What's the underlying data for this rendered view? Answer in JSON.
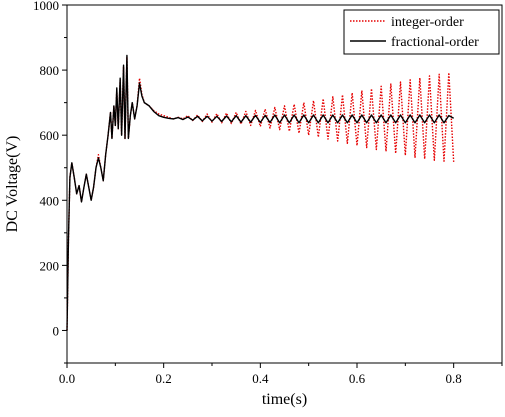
{
  "chart_data": {
    "type": "line",
    "title": "",
    "xlabel": "time(s)",
    "ylabel": "DC Voltage(V)",
    "xlim": [
      0.0,
      0.9
    ],
    "ylim": [
      -100,
      1000
    ],
    "x_ticks": [
      0.0,
      0.2,
      0.4,
      0.6,
      0.8
    ],
    "x_tick_labels": [
      "0.0",
      "0.2",
      "0.4",
      "0.6",
      "0.8"
    ],
    "y_ticks": [
      0,
      200,
      400,
      600,
      800,
      1000
    ],
    "y_tick_labels": [
      "0",
      "200",
      "400",
      "600",
      "800",
      "1000"
    ],
    "grid": false,
    "legend_position": "top-right",
    "series": [
      {
        "name": "integer-order",
        "color": "#e60000",
        "line_style": "dotted",
        "points": [
          [
            0.0,
            0
          ],
          [
            0.003,
            280
          ],
          [
            0.006,
            470
          ],
          [
            0.01,
            515
          ],
          [
            0.015,
            470
          ],
          [
            0.02,
            420
          ],
          [
            0.025,
            445
          ],
          [
            0.03,
            395
          ],
          [
            0.035,
            440
          ],
          [
            0.04,
            480
          ],
          [
            0.045,
            440
          ],
          [
            0.05,
            400
          ],
          [
            0.055,
            440
          ],
          [
            0.06,
            500
          ],
          [
            0.065,
            540
          ],
          [
            0.07,
            500
          ],
          [
            0.075,
            460
          ],
          [
            0.08,
            540
          ],
          [
            0.085,
            600
          ],
          [
            0.09,
            670
          ],
          [
            0.093,
            590
          ],
          [
            0.097,
            690
          ],
          [
            0.1,
            630
          ],
          [
            0.103,
            740
          ],
          [
            0.106,
            620
          ],
          [
            0.11,
            770
          ],
          [
            0.113,
            600
          ],
          [
            0.117,
            810
          ],
          [
            0.12,
            590
          ],
          [
            0.124,
            840
          ],
          [
            0.127,
            590
          ],
          [
            0.131,
            660
          ],
          [
            0.135,
            700
          ],
          [
            0.14,
            650
          ],
          [
            0.145,
            690
          ],
          [
            0.15,
            775
          ],
          [
            0.155,
            725
          ],
          [
            0.16,
            700
          ],
          [
            0.17,
            690
          ],
          [
            0.18,
            675
          ],
          [
            0.19,
            665
          ],
          [
            0.2,
            660
          ],
          [
            0.21,
            655
          ],
          [
            0.22,
            650
          ],
          [
            0.23,
            655
          ],
          [
            0.24,
            650
          ],
          [
            0.25,
            660
          ],
          [
            0.26,
            645
          ],
          [
            0.27,
            662
          ],
          [
            0.28,
            642
          ],
          [
            0.29,
            665
          ],
          [
            0.3,
            640
          ],
          [
            0.31,
            666
          ],
          [
            0.32,
            638
          ],
          [
            0.33,
            668
          ],
          [
            0.34,
            636
          ],
          [
            0.35,
            670
          ],
          [
            0.36,
            634
          ],
          [
            0.37,
            673
          ],
          [
            0.38,
            630
          ],
          [
            0.39,
            676
          ],
          [
            0.4,
            627
          ],
          [
            0.41,
            680
          ],
          [
            0.42,
            622
          ],
          [
            0.43,
            685
          ],
          [
            0.44,
            617
          ],
          [
            0.45,
            690
          ],
          [
            0.46,
            612
          ],
          [
            0.47,
            695
          ],
          [
            0.48,
            606
          ],
          [
            0.49,
            700
          ],
          [
            0.5,
            600
          ],
          [
            0.51,
            706
          ],
          [
            0.52,
            594
          ],
          [
            0.53,
            712
          ],
          [
            0.54,
            588
          ],
          [
            0.55,
            718
          ],
          [
            0.56,
            582
          ],
          [
            0.57,
            724
          ],
          [
            0.58,
            575
          ],
          [
            0.59,
            730
          ],
          [
            0.6,
            568
          ],
          [
            0.61,
            737
          ],
          [
            0.62,
            562
          ],
          [
            0.63,
            743
          ],
          [
            0.64,
            556
          ],
          [
            0.65,
            750
          ],
          [
            0.66,
            550
          ],
          [
            0.67,
            757
          ],
          [
            0.68,
            544
          ],
          [
            0.69,
            763
          ],
          [
            0.7,
            538
          ],
          [
            0.71,
            770
          ],
          [
            0.72,
            532
          ],
          [
            0.73,
            776
          ],
          [
            0.74,
            527
          ],
          [
            0.75,
            782
          ],
          [
            0.76,
            523
          ],
          [
            0.77,
            787
          ],
          [
            0.78,
            520
          ],
          [
            0.79,
            792
          ],
          [
            0.8,
            518
          ]
        ]
      },
      {
        "name": "fractional-order",
        "color": "#000000",
        "line_style": "solid",
        "points": [
          [
            0.0,
            0
          ],
          [
            0.003,
            280
          ],
          [
            0.006,
            470
          ],
          [
            0.01,
            515
          ],
          [
            0.015,
            470
          ],
          [
            0.02,
            420
          ],
          [
            0.025,
            445
          ],
          [
            0.03,
            395
          ],
          [
            0.035,
            440
          ],
          [
            0.04,
            480
          ],
          [
            0.045,
            440
          ],
          [
            0.05,
            400
          ],
          [
            0.055,
            440
          ],
          [
            0.06,
            500
          ],
          [
            0.065,
            530
          ],
          [
            0.07,
            500
          ],
          [
            0.075,
            460
          ],
          [
            0.08,
            540
          ],
          [
            0.085,
            600
          ],
          [
            0.09,
            670
          ],
          [
            0.093,
            590
          ],
          [
            0.097,
            690
          ],
          [
            0.1,
            630
          ],
          [
            0.103,
            745
          ],
          [
            0.106,
            620
          ],
          [
            0.11,
            775
          ],
          [
            0.113,
            600
          ],
          [
            0.117,
            815
          ],
          [
            0.12,
            590
          ],
          [
            0.124,
            845
          ],
          [
            0.127,
            590
          ],
          [
            0.131,
            660
          ],
          [
            0.135,
            700
          ],
          [
            0.14,
            650
          ],
          [
            0.145,
            690
          ],
          [
            0.15,
            760
          ],
          [
            0.155,
            720
          ],
          [
            0.16,
            700
          ],
          [
            0.17,
            690
          ],
          [
            0.18,
            672
          ],
          [
            0.19,
            660
          ],
          [
            0.2,
            655
          ],
          [
            0.21,
            652
          ],
          [
            0.22,
            650
          ],
          [
            0.23,
            654
          ],
          [
            0.24,
            648
          ],
          [
            0.25,
            656
          ],
          [
            0.26,
            646
          ],
          [
            0.27,
            658
          ],
          [
            0.28,
            644
          ],
          [
            0.29,
            658
          ],
          [
            0.3,
            643
          ],
          [
            0.31,
            658
          ],
          [
            0.32,
            642
          ],
          [
            0.33,
            659
          ],
          [
            0.34,
            641
          ],
          [
            0.35,
            660
          ],
          [
            0.36,
            640
          ],
          [
            0.37,
            660
          ],
          [
            0.38,
            640
          ],
          [
            0.39,
            661
          ],
          [
            0.4,
            639
          ],
          [
            0.41,
            661
          ],
          [
            0.42,
            639
          ],
          [
            0.43,
            662
          ],
          [
            0.44,
            638
          ],
          [
            0.45,
            662
          ],
          [
            0.46,
            638
          ],
          [
            0.47,
            662
          ],
          [
            0.48,
            638
          ],
          [
            0.49,
            662
          ],
          [
            0.5,
            638
          ],
          [
            0.51,
            662
          ],
          [
            0.52,
            638
          ],
          [
            0.53,
            662
          ],
          [
            0.54,
            638
          ],
          [
            0.55,
            662
          ],
          [
            0.56,
            638
          ],
          [
            0.57,
            662
          ],
          [
            0.58,
            638
          ],
          [
            0.59,
            662
          ],
          [
            0.6,
            638
          ],
          [
            0.61,
            662
          ],
          [
            0.62,
            638
          ],
          [
            0.63,
            662
          ],
          [
            0.64,
            638
          ],
          [
            0.65,
            662
          ],
          [
            0.66,
            638
          ],
          [
            0.67,
            662
          ],
          [
            0.68,
            638
          ],
          [
            0.69,
            662
          ],
          [
            0.7,
            638
          ],
          [
            0.71,
            662
          ],
          [
            0.72,
            638
          ],
          [
            0.73,
            662
          ],
          [
            0.74,
            638
          ],
          [
            0.75,
            662
          ],
          [
            0.76,
            638
          ],
          [
            0.77,
            662
          ],
          [
            0.78,
            638
          ],
          [
            0.79,
            660
          ],
          [
            0.8,
            652
          ]
        ]
      }
    ]
  }
}
